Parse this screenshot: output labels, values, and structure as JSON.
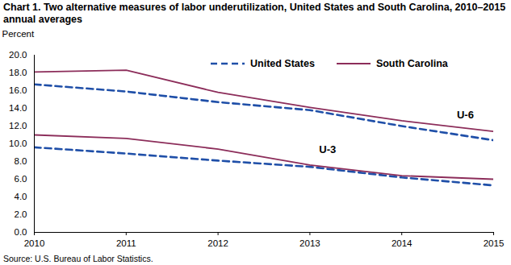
{
  "chart_data": {
    "type": "line",
    "title": "Chart 1. Two alternative measures of labor underutilization, United States and South Carolina, 2010–2015  annual averages",
    "y_label": "Percent",
    "caption": "Source: U.S. Bureau of Labor Statistics.",
    "x": [
      2010,
      2011,
      2012,
      2013,
      2014,
      2015
    ],
    "series": [
      {
        "name": "United States",
        "color": "#1f4fa8",
        "line_style": "dashed",
        "values": [
          16.7,
          15.9,
          14.7,
          13.8,
          12.0,
          10.4
        ]
      },
      {
        "name": "South Carolina",
        "color": "#8c2d5a",
        "line_style": "solid",
        "values": [
          18.1,
          18.3,
          15.8,
          14.1,
          12.6,
          11.4
        ]
      },
      {
        "name": "United States",
        "color": "#1f4fa8",
        "line_style": "dashed",
        "values": [
          9.6,
          8.9,
          8.1,
          7.4,
          6.2,
          5.3
        ]
      },
      {
        "name": "South Carolina",
        "color": "#8c2d5a",
        "line_style": "solid",
        "values": [
          11.0,
          10.6,
          9.4,
          7.6,
          6.4,
          6.0
        ]
      }
    ],
    "annotations": [
      {
        "text": "U-6",
        "x": 2014.6,
        "y": 13.2
      },
      {
        "text": "U-3",
        "x": 2013.1,
        "y": 9.3
      }
    ],
    "xlim": [
      2010,
      2015
    ],
    "xticks": [
      2010,
      2011,
      2012,
      2013,
      2014,
      2015
    ],
    "ylim": [
      0,
      20
    ],
    "yticks": [
      {
        "value": 0,
        "label": "0.0"
      },
      {
        "value": 2,
        "label": "2.0"
      },
      {
        "value": 4,
        "label": "4.0"
      },
      {
        "value": 6,
        "label": "6.0"
      },
      {
        "value": 8,
        "label": "8.0"
      },
      {
        "value": 10,
        "label": "10.0"
      },
      {
        "value": 12,
        "label": "12.0"
      },
      {
        "value": 14,
        "label": "14.0"
      },
      {
        "value": 16,
        "label": "16.0"
      },
      {
        "value": 18,
        "label": "18.0"
      },
      {
        "value": 20,
        "label": "20.0"
      }
    ],
    "grid": false,
    "legend": "top"
  }
}
